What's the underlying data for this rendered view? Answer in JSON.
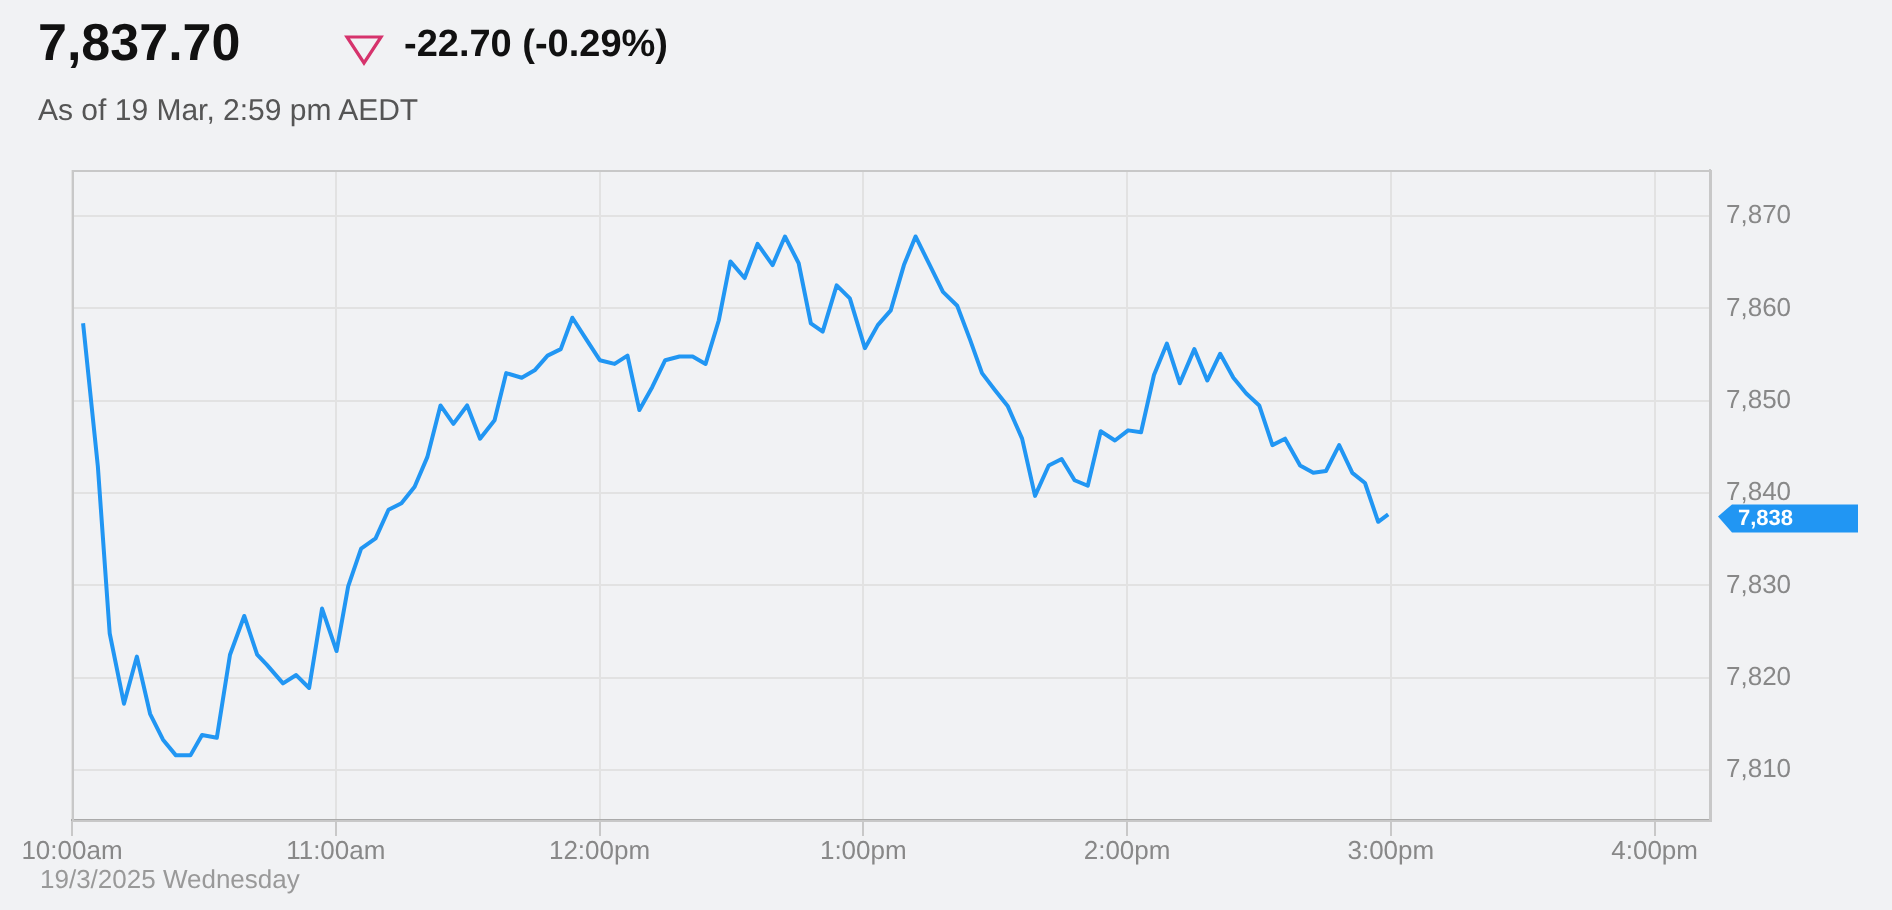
{
  "chart_data": {
    "type": "line",
    "title": "7,837.70",
    "subtitle": "-22.70 (-0.29%)",
    "annotations": [
      "As of 19 Mar, 2:59 pm AEDT",
      "19/3/2025 Wednesday",
      "7,838"
    ],
    "x": [
      10.042,
      10.098,
      10.143,
      10.197,
      10.246,
      10.296,
      10.345,
      10.394,
      10.449,
      10.493,
      10.549,
      10.599,
      10.653,
      10.702,
      10.739,
      10.8,
      10.85,
      10.899,
      10.948,
      11.003,
      11.047,
      11.096,
      11.151,
      11.2,
      11.249,
      11.299,
      11.347,
      11.397,
      11.446,
      11.498,
      11.547,
      11.602,
      11.646,
      11.705,
      11.754,
      11.803,
      11.853,
      11.897,
      11.951,
      12.001,
      12.057,
      12.106,
      12.151,
      12.2,
      12.249,
      12.303,
      12.353,
      12.402,
      12.452,
      12.496,
      12.55,
      12.599,
      12.656,
      12.703,
      12.755,
      12.801,
      12.846,
      12.899,
      12.949,
      13.006,
      13.055,
      13.104,
      13.154,
      13.198,
      13.252,
      13.302,
      13.356,
      13.405,
      13.45,
      13.498,
      13.548,
      13.602,
      13.651,
      13.703,
      13.752,
      13.801,
      13.851,
      13.9,
      13.954,
      14.004,
      14.053,
      14.102,
      14.151,
      14.2,
      14.255,
      14.304,
      14.353,
      14.403,
      14.452,
      14.501,
      14.551,
      14.599,
      14.656,
      14.706,
      14.754,
      14.804,
      14.854,
      14.902,
      14.952,
      14.99
    ],
    "series": [
      {
        "color": "#2196f3",
        "values": [
          7858.4,
          7842.9,
          7824.8,
          7817.2,
          7822.3,
          7816.1,
          7813.3,
          7811.6,
          7811.6,
          7813.8,
          7813.5,
          7822.5,
          7826.7,
          7822.5,
          7821.4,
          7819.4,
          7820.3,
          7818.9,
          7827.5,
          7822.9,
          7829.9,
          7834.0,
          7835.1,
          7838.2,
          7838.9,
          7840.7,
          7843.9,
          7849.5,
          7847.5,
          7849.5,
          7845.9,
          7847.9,
          7853.0,
          7852.5,
          7853.3,
          7854.9,
          7855.6,
          7859.0,
          7856.6,
          7854.4,
          7854.0,
          7854.9,
          7849.0,
          7851.5,
          7854.4,
          7854.8,
          7854.8,
          7854.0,
          7858.7,
          7865.1,
          7863.3,
          7867.0,
          7864.7,
          7867.8,
          7864.9,
          7858.4,
          7857.5,
          7862.5,
          7861.1,
          7855.7,
          7858.2,
          7859.8,
          7864.7,
          7867.8,
          7864.7,
          7861.8,
          7860.3,
          7856.6,
          7853.0,
          7851.2,
          7849.4,
          7845.9,
          7839.7,
          7843.0,
          7843.7,
          7841.4,
          7840.8,
          7846.7,
          7845.7,
          7846.8,
          7846.6,
          7852.8,
          7856.2,
          7851.9,
          7855.6,
          7852.2,
          7855.1,
          7852.5,
          7850.8,
          7849.5,
          7845.2,
          7845.9,
          7843.0,
          7842.2,
          7842.4,
          7845.2,
          7842.2,
          7841.1,
          7836.9,
          7837.7
        ]
      }
    ],
    "xlim": [
      10,
      16.21
    ],
    "ylim": [
      7804.6,
      7875
    ],
    "xticks": [
      {
        "value": 10,
        "label": "10:00am"
      },
      {
        "value": 11,
        "label": "11:00am"
      },
      {
        "value": 12,
        "label": "12:00pm"
      },
      {
        "value": 13,
        "label": "1:00pm"
      },
      {
        "value": 14,
        "label": "2:00pm"
      },
      {
        "value": 15,
        "label": "3:00pm"
      },
      {
        "value": 16,
        "label": "4:00pm"
      }
    ],
    "yticks": [
      {
        "value": 7810,
        "label": "7,810"
      },
      {
        "value": 7820,
        "label": "7,820"
      },
      {
        "value": 7830,
        "label": "7,830"
      },
      {
        "value": 7840,
        "label": "7,840"
      },
      {
        "value": 7850,
        "label": "7,850"
      },
      {
        "value": 7860,
        "label": "7,860"
      },
      {
        "value": 7870,
        "label": "7,870"
      }
    ],
    "grid": true,
    "legend": false,
    "marker": "none",
    "line_style": "solid"
  }
}
